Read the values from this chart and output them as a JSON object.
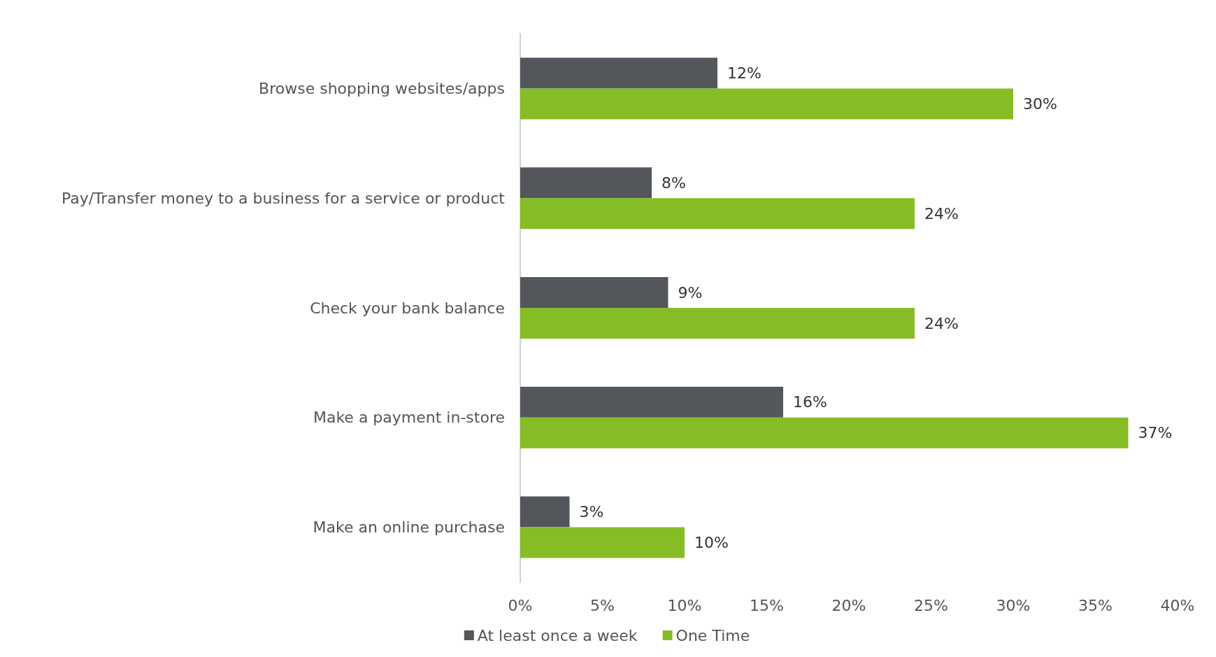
{
  "chart_data": {
    "type": "bar",
    "orientation": "horizontal",
    "categories": [
      "Browse shopping websites/apps",
      "Pay/Transfer money to a business for a service or product",
      "Check your bank balance",
      "Make a payment in-store",
      "Make an online purchase"
    ],
    "series": [
      {
        "name": "At least once a week",
        "color": "#53565a",
        "values": [
          12,
          8,
          9,
          16,
          3
        ],
        "value_labels": [
          "12%",
          "8%",
          "9%",
          "16%",
          "3%"
        ]
      },
      {
        "name": "One Time",
        "color": "#86bc25",
        "values": [
          30,
          24,
          24,
          37,
          10
        ],
        "value_labels": [
          "30%",
          "24%",
          "24%",
          "37%",
          "10%"
        ]
      }
    ],
    "xlim": [
      0,
      40
    ],
    "xticks": [
      {
        "value": 0,
        "label": "0%"
      },
      {
        "value": 5,
        "label": "5%"
      },
      {
        "value": 10,
        "label": "10%"
      },
      {
        "value": 15,
        "label": "15%"
      },
      {
        "value": 20,
        "label": "20%"
      },
      {
        "value": 25,
        "label": "25%"
      },
      {
        "value": 30,
        "label": "30%"
      },
      {
        "value": 35,
        "label": "35%"
      },
      {
        "value": 40,
        "label": "40%"
      }
    ],
    "grid": false,
    "legend": "bottom"
  }
}
